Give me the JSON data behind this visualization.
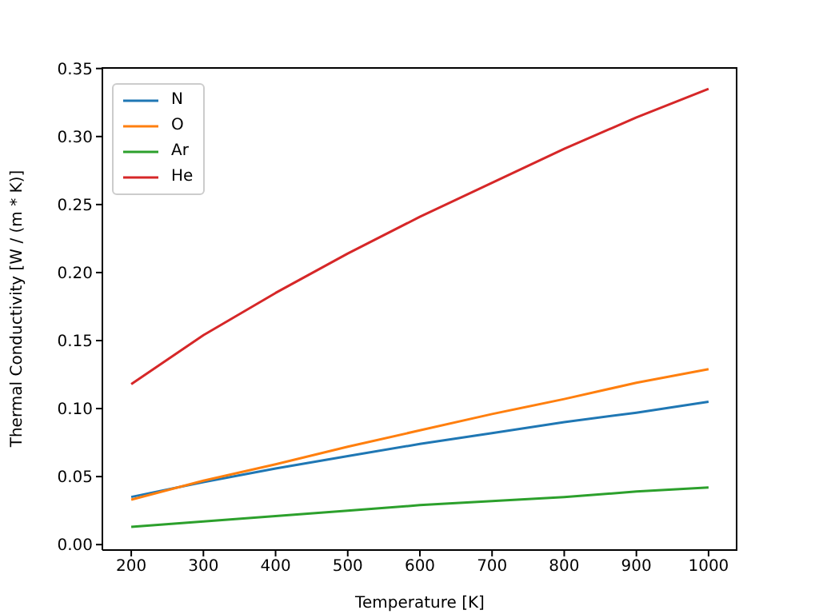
{
  "chart_data": {
    "type": "line",
    "xlabel": "Temperature [K]",
    "ylabel": "Thermal Conductivity [W / (m * K)]",
    "x": [
      200,
      300,
      400,
      500,
      600,
      700,
      800,
      900,
      1000
    ],
    "series": [
      {
        "name": "N",
        "color": "#1f77b4",
        "values": [
          0.035,
          0.046,
          0.056,
          0.065,
          0.074,
          0.082,
          0.09,
          0.097,
          0.105
        ]
      },
      {
        "name": "O",
        "color": "#ff7f0e",
        "values": [
          0.033,
          0.047,
          0.059,
          0.072,
          0.084,
          0.096,
          0.107,
          0.119,
          0.129
        ]
      },
      {
        "name": "Ar",
        "color": "#2ca02c",
        "values": [
          0.013,
          0.017,
          0.021,
          0.025,
          0.029,
          0.032,
          0.035,
          0.039,
          0.042
        ]
      },
      {
        "name": "He",
        "color": "#d62728",
        "values": [
          0.118,
          0.154,
          0.185,
          0.214,
          0.241,
          0.266,
          0.291,
          0.314,
          0.335
        ]
      }
    ],
    "xlim": [
      160,
      1040
    ],
    "xticks": [
      200,
      300,
      400,
      500,
      600,
      700,
      800,
      900,
      1000
    ],
    "ylim": [
      -0.004,
      0.351
    ],
    "yticks": [
      {
        "value": 0,
        "label": "0.00"
      },
      {
        "value": 0.05,
        "label": "0.05"
      },
      {
        "value": 0.1,
        "label": "0.10"
      },
      {
        "value": 0.15,
        "label": "0.15"
      },
      {
        "value": 0.2,
        "label": "0.20"
      },
      {
        "value": 0.25,
        "label": "0.25"
      },
      {
        "value": 0.3,
        "label": "0.30"
      },
      {
        "value": 0.35,
        "label": "0.35"
      }
    ],
    "grid": false,
    "legend": "top left",
    "marker": "none",
    "line_style": "solid"
  }
}
